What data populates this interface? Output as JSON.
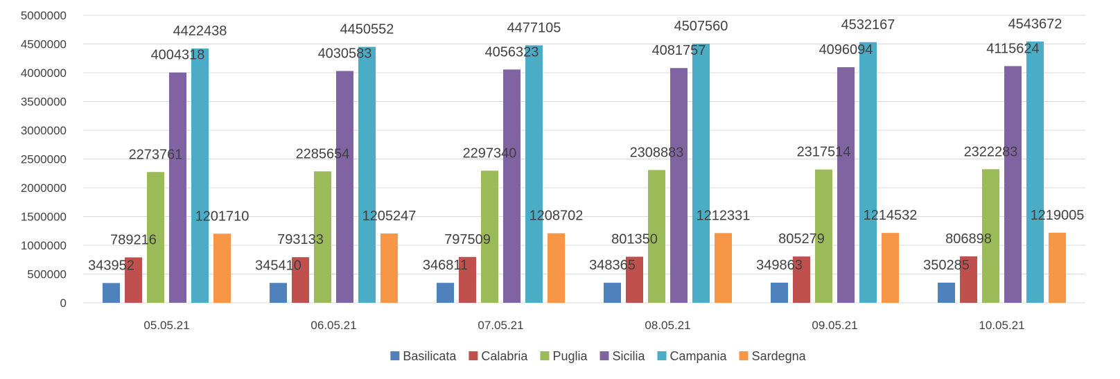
{
  "chart_data": {
    "type": "bar",
    "title": "",
    "xlabel": "",
    "ylabel": "",
    "ylim": [
      0,
      5000000
    ],
    "yticks": [
      "0",
      "500000",
      "1000000",
      "1500000",
      "2000000",
      "2500000",
      "3000000",
      "3500000",
      "4000000",
      "4500000",
      "5000000"
    ],
    "grid": "horizontal",
    "legend_position": "bottom",
    "categories": [
      "05.05.21",
      "06.05.21",
      "07.05.21",
      "08.05.21",
      "09.05.21",
      "10.05.21"
    ],
    "series": [
      {
        "name": "Basilicata",
        "color": "#4F81BD",
        "values": [
          343952,
          345410,
          346811,
          348365,
          349863,
          350285
        ]
      },
      {
        "name": "Calabria",
        "color": "#C0504D",
        "values": [
          789216,
          793133,
          797509,
          801350,
          805279,
          806898
        ]
      },
      {
        "name": "Puglia",
        "color": "#9BBB59",
        "values": [
          2273761,
          2285654,
          2297340,
          2308883,
          2317514,
          2322283
        ]
      },
      {
        "name": "Sicilia",
        "color": "#8064A2",
        "values": [
          4004318,
          4030583,
          4056323,
          4081757,
          4096094,
          4115624
        ]
      },
      {
        "name": "Campania",
        "color": "#4BACC6",
        "values": [
          4422438,
          4450552,
          4477105,
          4507560,
          4532167,
          4543672
        ]
      },
      {
        "name": "Sardegna",
        "color": "#F79646",
        "values": [
          1201710,
          1205247,
          1208702,
          1212331,
          1214532,
          1219005
        ]
      }
    ]
  }
}
